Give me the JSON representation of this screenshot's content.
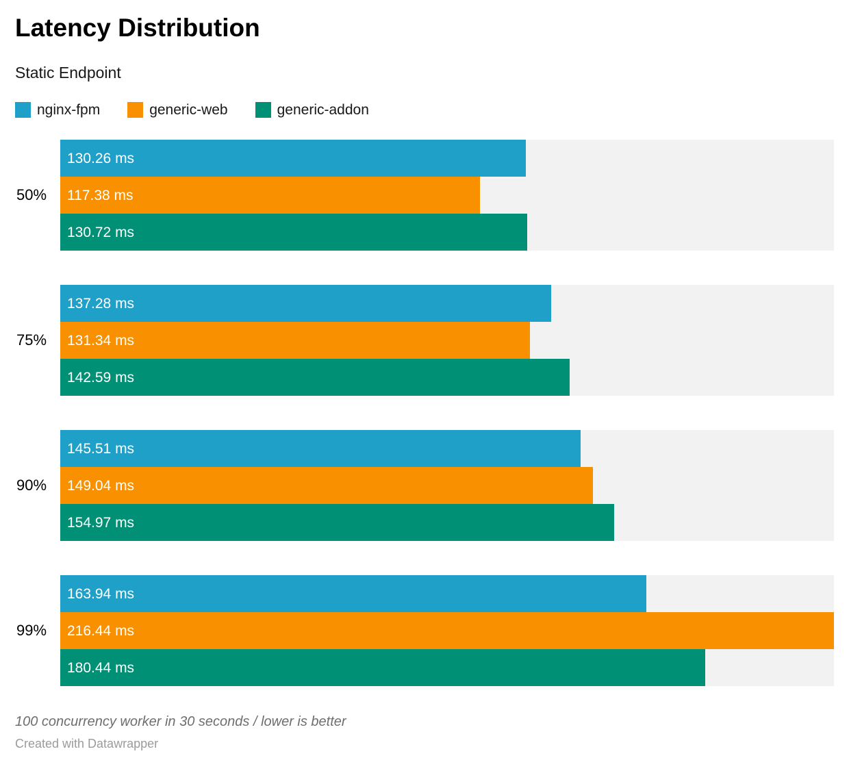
{
  "header": {
    "title": "Latency Distribution",
    "subtitle": "Static Endpoint"
  },
  "legend": {
    "items": [
      {
        "label": "nginx-fpm",
        "color": "#1ea0c8"
      },
      {
        "label": "generic-web",
        "color": "#f89000"
      },
      {
        "label": "generic-addon",
        "color": "#009076"
      }
    ]
  },
  "chart_data": {
    "type": "bar",
    "orientation": "horizontal",
    "title": "Latency Distribution",
    "subtitle": "Static Endpoint",
    "categories": [
      "50%",
      "75%",
      "90%",
      "99%"
    ],
    "series": [
      {
        "name": "nginx-fpm",
        "color": "#1ea0c8",
        "values": [
          130.26,
          137.28,
          145.51,
          163.94
        ]
      },
      {
        "name": "generic-web",
        "color": "#f89000",
        "values": [
          117.38,
          131.34,
          149.04,
          216.44
        ]
      },
      {
        "name": "generic-addon",
        "color": "#009076",
        "values": [
          130.72,
          142.59,
          154.97,
          180.44
        ]
      }
    ],
    "value_suffix": " ms",
    "value_decimals": 2,
    "xlim": [
      0,
      216.44
    ],
    "track_color": "#f2f2f2",
    "bar_label_color": "#ffffff",
    "grid": false,
    "legend_position": "top"
  },
  "footer": {
    "footnote": "100 concurrency worker in 30 seconds / lower is better",
    "byline": "Created with Datawrapper"
  }
}
